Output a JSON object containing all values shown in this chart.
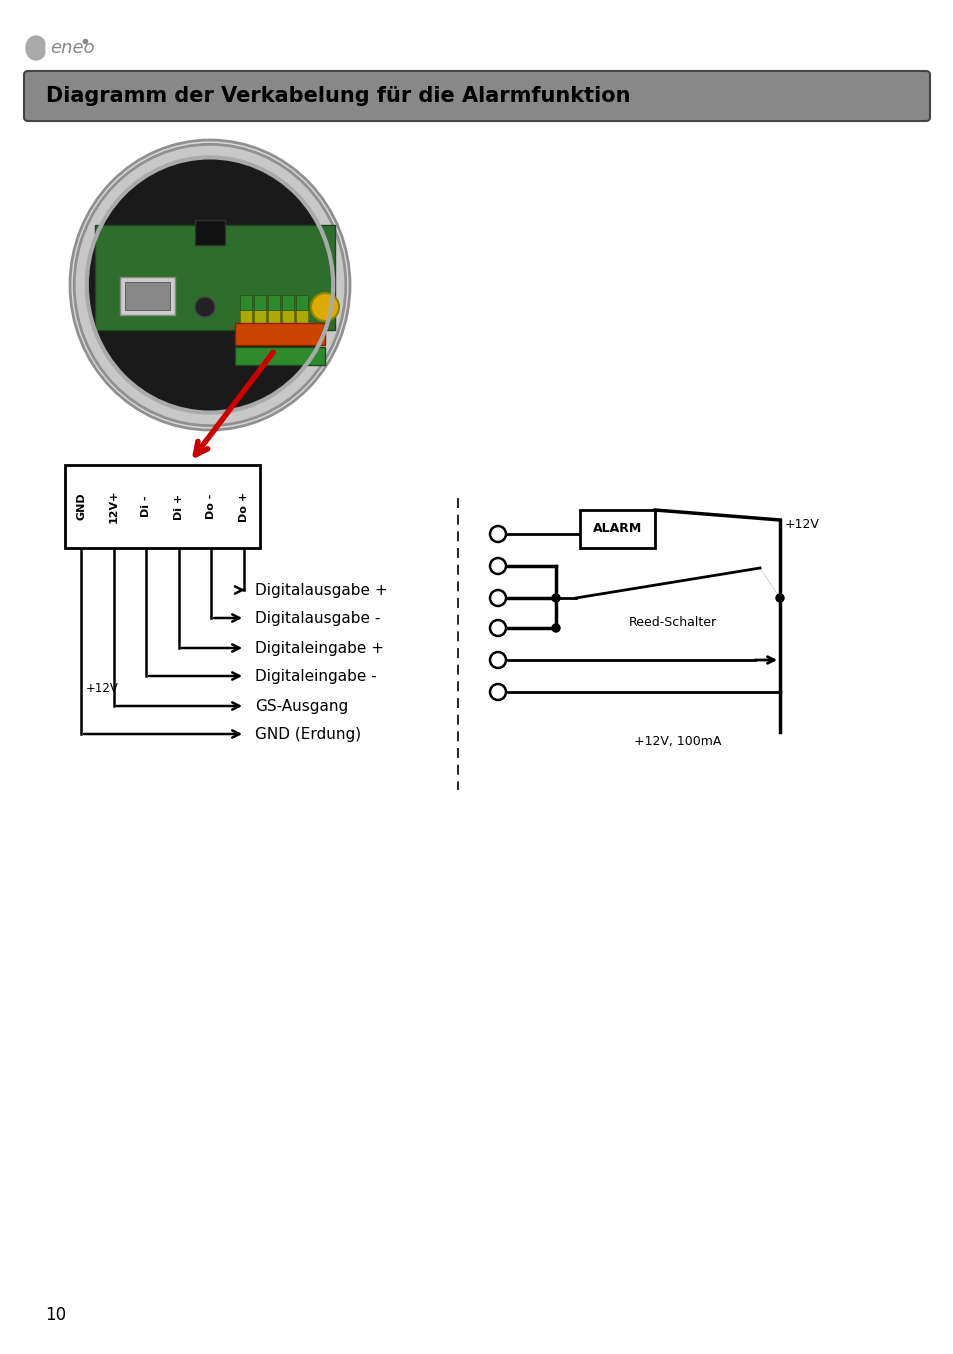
{
  "title": "Diagramm der Verkabelung für die Alarmfunktion",
  "title_bg": "#888888",
  "title_color": "#000000",
  "page_bg": "#ffffff",
  "page_number": "10",
  "connector_labels": [
    "GND",
    "12V+",
    "Di -",
    "Di +",
    "Do -",
    "Do +"
  ],
  "signal_labels": [
    "Digitalausgabe +",
    "Digitalausgabe -",
    "Digitaleingabe +",
    "Digitaleingabe -",
    "GS-Ausgang",
    "GND (Erdung)"
  ],
  "line_color": "#000000",
  "arrow_color_red": "#cc0000",
  "font_size_title": 15,
  "font_size_labels": 11,
  "font_size_connector": 8,
  "font_size_small": 9,
  "plus12v_wire_label": "+12V",
  "alarm_label": "ALARM",
  "reed_label": "Reed-Schalter",
  "plus12v_top_label": "+12V",
  "plus12v_bottom_label": "+12V, 100mA"
}
